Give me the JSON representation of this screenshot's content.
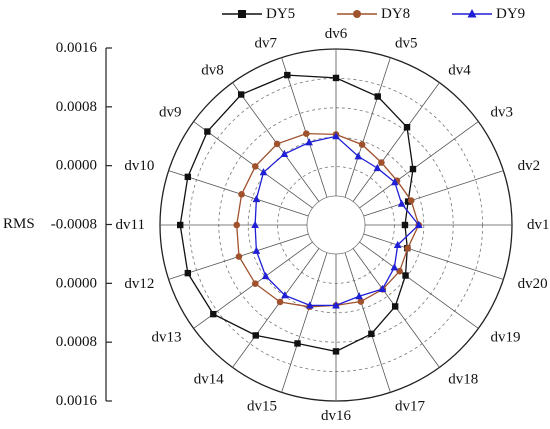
{
  "chart_data": {
    "type": "radar",
    "axis_label": "RMS",
    "radial_tick_labels": [
      "0.0016",
      "0.0008",
      "0.0000",
      "-0.0008",
      "0.0000",
      "0.0008",
      "0.0016"
    ],
    "categories": [
      "dv1",
      "dv2",
      "dv3",
      "dv4",
      "dv5",
      "dv6",
      "dv7",
      "dv8",
      "dv9",
      "dv10",
      "dv11",
      "dv12",
      "dv13",
      "dv14",
      "dv15",
      "dv16",
      "dv17",
      "dv18",
      "dv19",
      "dv20"
    ],
    "rlim": [
      -0.0016,
      0.0016
    ],
    "grid": true,
    "legend_position": "top",
    "series": [
      {
        "name": "DY5",
        "color": "#111111",
        "marker": "square",
        "values": [
          -0.00073,
          -0.00058,
          -0.00016,
          0.0004,
          0.00071,
          0.00097,
          0.0012,
          0.00128,
          0.00123,
          0.00116,
          0.00116,
          0.00116,
          0.00107,
          0.00074,
          0.00048,
          0.00052,
          0.00026,
          -4e-05,
          -0.00036,
          -0.0006
        ]
      },
      {
        "name": "DY8",
        "color": "#a0522d",
        "marker": "circle",
        "values": [
          -0.00043,
          -0.00051,
          -0.00059,
          -0.00055,
          -0.00039,
          -0.00026,
          -0.00014,
          -5e-05,
          -6e-05,
          -7e-05,
          -7e-05,
          -1e-05,
          -6e-05,
          -0.00016,
          -0.00036,
          -0.00048,
          -0.00048,
          -0.0005,
          -0.00052,
          -0.00059
        ]
      },
      {
        "name": "DY9",
        "color": "#1f1fd6",
        "marker": "triangle",
        "values": [
          -0.00043,
          -0.00073,
          -0.00065,
          -0.0007,
          -0.00066,
          -0.0003,
          -0.00034,
          -0.00032,
          -0.00028,
          -0.00041,
          -0.00047,
          -0.00041,
          -0.00034,
          -0.00034,
          -0.00039,
          -0.00048,
          -0.0006,
          -0.00051,
          -0.00066,
          -0.00082
        ]
      }
    ]
  }
}
